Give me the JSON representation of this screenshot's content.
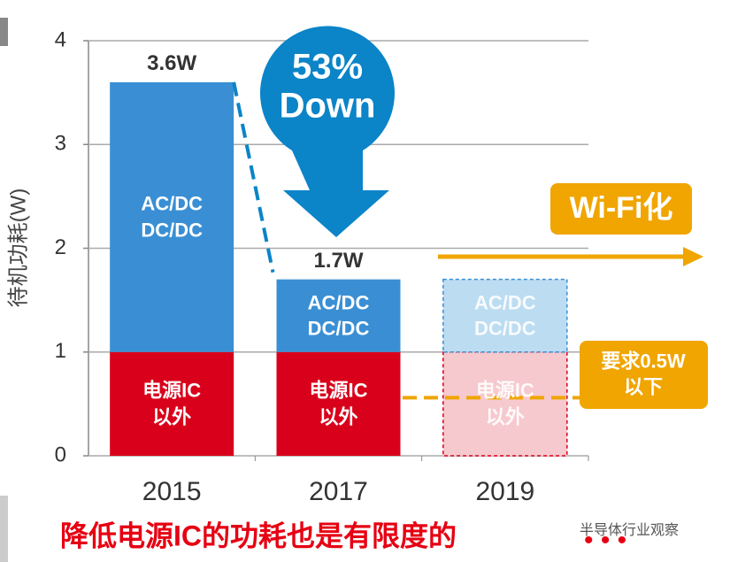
{
  "chart_data": {
    "type": "stacked_bar",
    "categories": [
      "2015",
      "2017",
      "2019"
    ],
    "series": [
      {
        "name": "电源IC\n以外",
        "color": "#d9001b",
        "projected_color": "#f6c9ce",
        "values": [
          1,
          1,
          1
        ]
      },
      {
        "name": "AC/DC\nDC/DC",
        "color": "#3a8fd4",
        "projected_color": "#bcdcf1",
        "values": [
          2.6,
          0.7,
          0.7
        ]
      }
    ],
    "projected": [
      false,
      false,
      true
    ],
    "total_labels": [
      "3.6W",
      "1.7W",
      null
    ],
    "y_label": "待机功耗(W)",
    "ylim": [
      0,
      4
    ],
    "yticks": [
      0,
      1,
      2,
      3,
      4
    ],
    "grid": true,
    "callout": [
      "53%",
      "Down"
    ],
    "trend_label": "Wi-Fi化",
    "requirement": {
      "value": 0.5,
      "label": "要求0.5W\n以下"
    },
    "caption": "降低电源IC的功耗也是有限度的",
    "watermark": "半导体行业观察"
  }
}
